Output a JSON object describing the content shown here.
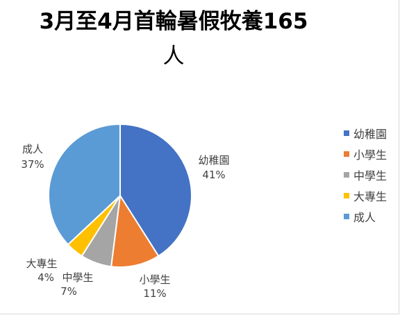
{
  "chart_data": {
    "type": "pie",
    "title": "3月至4月首輪暑假牧養165人",
    "title_line1": "3月至4月首輪暑假牧養165",
    "title_line2": "人",
    "categories": [
      "幼稚園",
      "小學生",
      "中學生",
      "大專生",
      "成人"
    ],
    "values": [
      41,
      11,
      7,
      4,
      37
    ],
    "value_labels": [
      "41%",
      "11%",
      "7%",
      "4%",
      "37%"
    ],
    "colors": [
      "#4472c4",
      "#ed7d31",
      "#a5a5a5",
      "#ffc000",
      "#5b9bd5"
    ],
    "legend_position": "right"
  }
}
